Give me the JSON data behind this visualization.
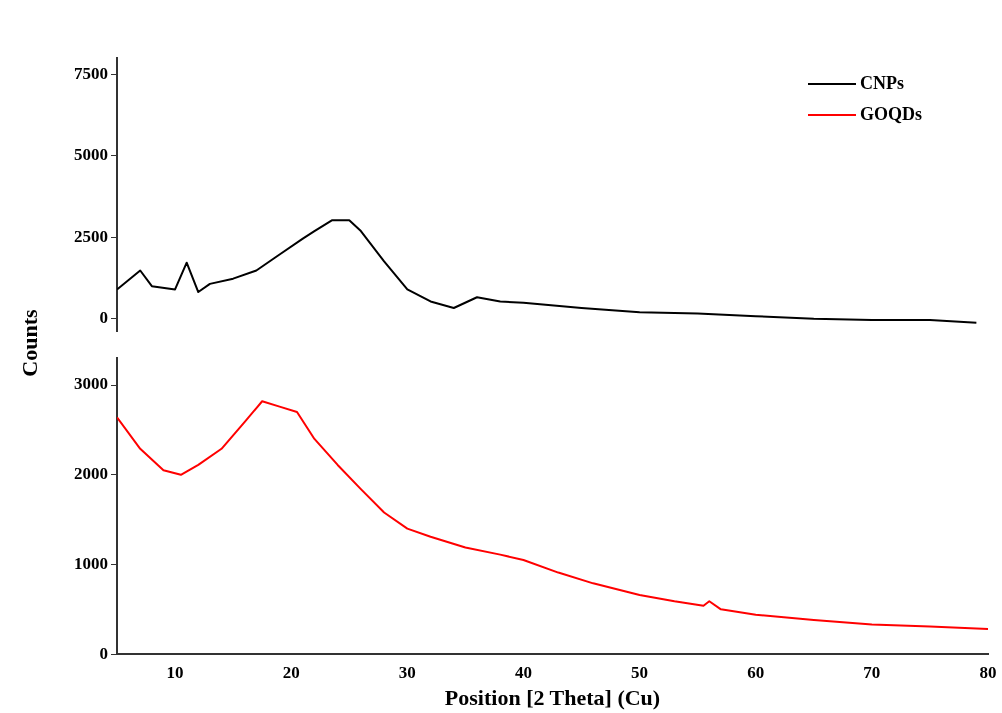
{
  "chart_data": [
    {
      "type": "line",
      "ylabel": "Counts",
      "xlim": [
        5,
        80
      ],
      "ylim": [
        -400,
        8000
      ],
      "yticks": [
        0,
        2500,
        5000,
        7500
      ],
      "tick_labels": "y",
      "grid": false,
      "legend": "top right",
      "marker": "none",
      "line_style": "solid",
      "series": [
        {
          "name": "CNPs",
          "color": "#000000",
          "x": [
            5,
            7,
            8,
            10,
            11,
            12,
            13,
            15,
            17,
            19,
            21,
            22,
            23.5,
            25,
            26,
            28,
            30,
            32,
            34,
            36,
            38,
            40,
            45,
            50,
            55,
            60,
            65,
            70,
            75,
            79
          ],
          "values": [
            900,
            1480,
            1000,
            900,
            1720,
            820,
            1070,
            1230,
            1480,
            1970,
            2460,
            2690,
            3020,
            3020,
            2690,
            1760,
            900,
            530,
            330,
            660,
            530,
            490,
            330,
            200,
            160,
            80,
            0,
            -40,
            -40,
            -120
          ]
        }
      ]
    },
    {
      "type": "line",
      "xlabel": "Position [2 Theta] (Cu)",
      "xlim": [
        5,
        80
      ],
      "xticks": [
        10,
        20,
        30,
        40,
        50,
        60,
        70,
        80
      ],
      "ylim": [
        0,
        3300
      ],
      "yticks": [
        0,
        1000,
        2000,
        3000
      ],
      "grid": false,
      "marker": "none",
      "line_style": "solid",
      "series": [
        {
          "name": "GOQDs",
          "color": "#ff0000",
          "x": [
            5,
            7,
            9,
            10.5,
            12,
            14,
            16,
            17.5,
            19,
            20.5,
            22,
            24,
            26,
            28,
            30,
            32,
            35,
            38,
            40,
            43,
            46,
            50,
            53,
            55.5,
            56,
            57,
            60,
            65,
            70,
            75,
            80
          ],
          "values": [
            2640,
            2290,
            2050,
            2000,
            2110,
            2290,
            2590,
            2820,
            2760,
            2700,
            2400,
            2110,
            1840,
            1580,
            1400,
            1310,
            1190,
            1110,
            1050,
            910,
            790,
            660,
            590,
            540,
            590,
            500,
            440,
            380,
            330,
            310,
            280
          ]
        }
      ]
    }
  ]
}
